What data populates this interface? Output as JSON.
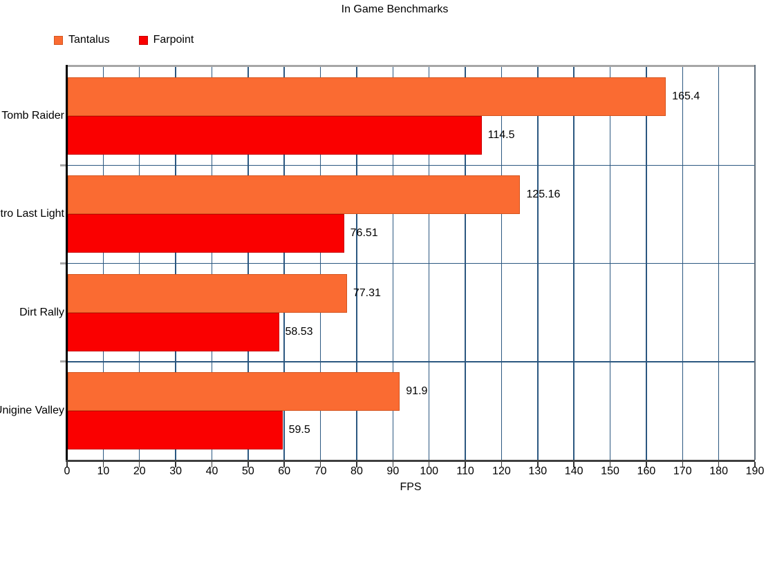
{
  "title": "In Game Benchmarks",
  "chart_data": {
    "type": "bar",
    "orientation": "horizontal",
    "title": "In Game Benchmarks",
    "xlabel": "FPS",
    "xlim": [
      0,
      190
    ],
    "xtick_step": 10,
    "grid": true,
    "legend_position": "top-left",
    "categories": [
      "Tomb Raider",
      "Metro Last Light",
      "Dirt Rally",
      "Unigine Valley"
    ],
    "series": [
      {
        "name": "Tantalus",
        "color": "#FA6B32",
        "border_color": "#D4551F",
        "values": [
          165.4,
          125.16,
          77.31,
          91.9
        ]
      },
      {
        "name": "Farpoint",
        "color": "#FA0000",
        "border_color": "#C70000",
        "values": [
          114.5,
          76.51,
          58.53,
          59.5
        ]
      }
    ],
    "value_labels": {
      "Tantalus": [
        "165.4",
        "125.16",
        "77.31",
        "91.9"
      ],
      "Farpoint": [
        "114.5",
        "76.51",
        "58.53",
        "59.5"
      ]
    },
    "colors": {
      "gridline": "#2B5780",
      "plot_border_top": "#A6A6A6",
      "plot_border_right": "#62707E",
      "x_axis": "#3F3F3F",
      "y_axis": "#000000",
      "tick": "#333333",
      "text": "#000000"
    }
  }
}
